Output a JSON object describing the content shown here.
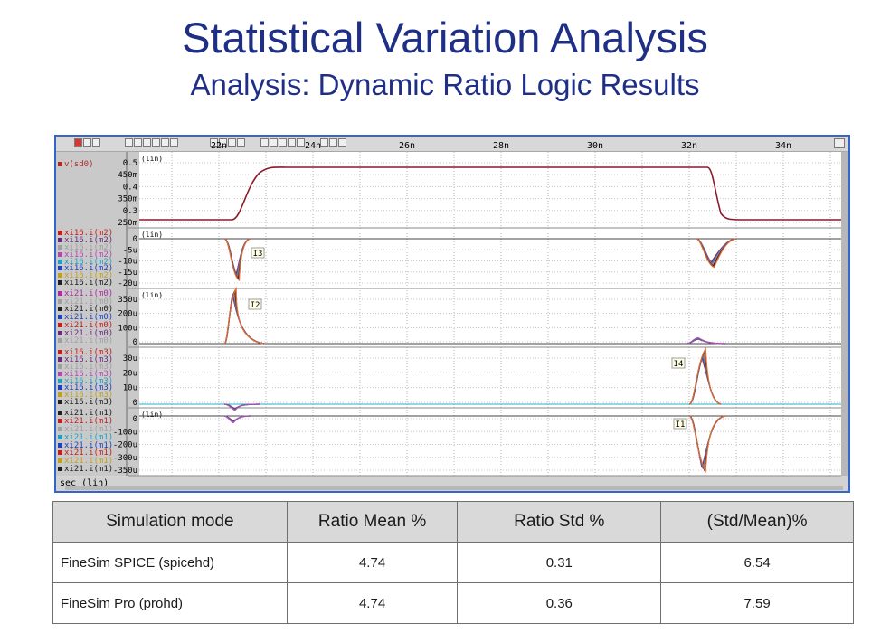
{
  "slide": {
    "title": "Statistical Variation Analysis",
    "subtitle": "Analysis: Dynamic Ratio Logic Results"
  },
  "waveform_viewer": {
    "x_axis_label": "sec (lin)",
    "x_ticks": [
      "22n",
      "24n",
      "26n",
      "28n",
      "30n",
      "32n",
      "34n"
    ],
    "colors": {
      "background": "#ffffff",
      "panel": "#c9c9c9",
      "window_border": "#3366c8",
      "vsd0_trace": "#8b1a2b",
      "cyan_trace": "#20b0c8"
    },
    "panels": [
      {
        "scale": "(lin)",
        "y_ticks": [
          "0.5",
          "450m",
          "0.4",
          "350m",
          "0.3",
          "250m"
        ],
        "signals": [
          {
            "label": "v(sd0)",
            "color": "#b02a2a"
          }
        ]
      },
      {
        "scale": "(lin)",
        "marker": "I3",
        "y_ticks": [
          "0",
          "-5u",
          "-10u",
          "-15u",
          "-20u"
        ],
        "signals": [
          {
            "label": "xi16.i(m2)",
            "color": "#c02020"
          },
          {
            "label": "xi16.i(m2)",
            "color": "#6a2a7a"
          },
          {
            "label": "xi16.i(m2)",
            "color": "#a0a0a0"
          },
          {
            "label": "xi16.i(m2)",
            "color": "#b04ab0"
          },
          {
            "label": "xi16.i(m2)",
            "color": "#20a0c0"
          },
          {
            "label": "xi16.i(m2)",
            "color": "#2040c0"
          },
          {
            "label": "xi16.i(m2)",
            "color": "#c0a020"
          },
          {
            "label": "xi16.i(m2)",
            "color": "#202020"
          }
        ]
      },
      {
        "scale": "(lin)",
        "marker": "I2",
        "y_ticks": [
          "350u",
          "200u",
          "100u",
          "0"
        ],
        "signals": [
          {
            "label": "xi21.i(m0)",
            "color": "#b02aa0"
          },
          {
            "label": "xi21.i(m0)",
            "color": "#a0a0a0"
          },
          {
            "label": "xi21.i(m0)",
            "color": "#202020"
          },
          {
            "label": "xi21.i(m0)",
            "color": "#2040c0"
          },
          {
            "label": "xi21.i(m0)",
            "color": "#c02020"
          },
          {
            "label": "xi21.i(m0)",
            "color": "#6a2a7a"
          },
          {
            "label": "xi21.i(m0)",
            "color": "#a0a0a0"
          }
        ]
      },
      {
        "scale": "",
        "marker": "I4",
        "y_ticks": [
          "30u",
          "20u",
          "10u",
          "0"
        ],
        "signals": [
          {
            "label": "xi16.i(m3)",
            "color": "#c02020"
          },
          {
            "label": "xi16.i(m3)",
            "color": "#6a2a7a"
          },
          {
            "label": "xi16.i(m3)",
            "color": "#a0a0a0"
          },
          {
            "label": "xi16.i(m3)",
            "color": "#b04ab0"
          },
          {
            "label": "xi16.i(m3)",
            "color": "#20a0c0"
          },
          {
            "label": "xi16.i(m3)",
            "color": "#2040c0"
          },
          {
            "label": "xi16.i(m3)",
            "color": "#c0a020"
          },
          {
            "label": "xi16.i(m3)",
            "color": "#202020"
          }
        ]
      },
      {
        "scale": "(lin)",
        "marker": "I1",
        "y_ticks": [
          "0",
          "-100u",
          "-200u",
          "-300u",
          "-350u"
        ],
        "signals": [
          {
            "label": "xi21.i(m1)",
            "color": "#202020"
          },
          {
            "label": "xi21.i(m1)",
            "color": "#c02020"
          },
          {
            "label": "xi21.i(m1)",
            "color": "#a0a0a0"
          },
          {
            "label": "xi21.i(m1)",
            "color": "#20a0c0"
          },
          {
            "label": "xi21.i(m1)",
            "color": "#2040c0"
          },
          {
            "label": "xi21.i(m1)",
            "color": "#c02020"
          },
          {
            "label": "xi21.i(m1)",
            "color": "#c0a020"
          },
          {
            "label": "xi21.i(m1)",
            "color": "#202020"
          }
        ]
      }
    ]
  },
  "results_table": {
    "headers": [
      "Simulation mode",
      "Ratio  Mean %",
      "Ratio Std %",
      "(Std/Mean)%"
    ],
    "rows": [
      {
        "mode": "FineSim SPICE (spicehd)",
        "mean": "4.74",
        "std": "0.31",
        "ratio": "6.54"
      },
      {
        "mode": "FineSim Pro (prohd)",
        "mean": "4.74",
        "std": "0.36",
        "ratio": "7.59"
      }
    ]
  }
}
